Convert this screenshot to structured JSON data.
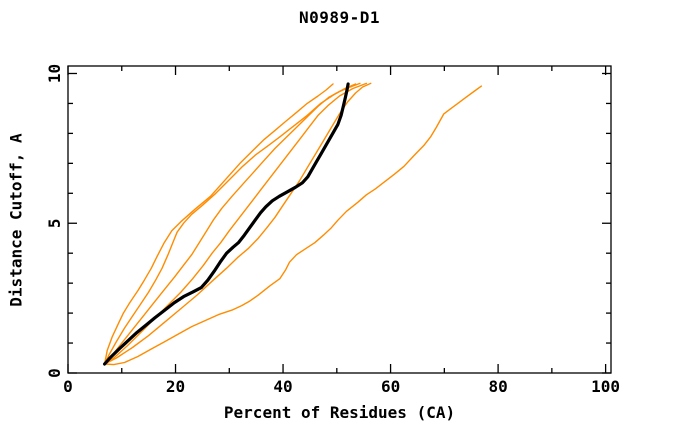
{
  "chart": {
    "title": "N0989-D1",
    "x_axis_label": "Percent of Residues (CA)",
    "y_axis_label": "Distance Cutoff, A"
  },
  "chart_data": {
    "type": "line",
    "title": "N0989-D1",
    "xlabel": "Percent of Residues (CA)",
    "ylabel": "Distance Cutoff, A",
    "xlim": [
      0,
      100
    ],
    "ylim": [
      0,
      10
    ],
    "x_major_ticks": [
      0,
      20,
      40,
      60,
      80,
      100
    ],
    "x_minor_ticks": [
      10,
      30,
      50,
      70,
      90
    ],
    "y_major_ticks": [
      0,
      5,
      10
    ],
    "y_minor_ticks": [
      1,
      2,
      3,
      4,
      6,
      7,
      8,
      9
    ],
    "grid": false,
    "legend": "none",
    "colors": {
      "model_lines": "#ff8c00",
      "highlight_line": "#000000",
      "axis": "#000000"
    },
    "series": [
      {
        "name": "orange-model-1",
        "color": "#ff8c00",
        "width": 1.4,
        "points": [
          [
            6.8,
            0.3
          ],
          [
            7.3,
            0.75
          ],
          [
            8.2,
            1.2
          ],
          [
            9.5,
            1.7
          ],
          [
            10.3,
            2.0
          ],
          [
            11.5,
            2.35
          ],
          [
            13,
            2.75
          ],
          [
            14.2,
            3.1
          ],
          [
            15.5,
            3.5
          ],
          [
            16.6,
            3.9
          ],
          [
            17.9,
            4.35
          ],
          [
            19.3,
            4.75
          ],
          [
            21,
            5.05
          ],
          [
            23.5,
            5.45
          ],
          [
            26.5,
            5.9
          ],
          [
            29.5,
            6.5
          ],
          [
            32,
            7.0
          ],
          [
            34.5,
            7.45
          ],
          [
            36.5,
            7.8
          ],
          [
            38.5,
            8.1
          ],
          [
            40.5,
            8.4
          ],
          [
            42.5,
            8.7
          ],
          [
            44.5,
            9.0
          ],
          [
            46.5,
            9.25
          ],
          [
            48,
            9.45
          ],
          [
            49.3,
            9.65
          ]
        ]
      },
      {
        "name": "orange-model-2",
        "color": "#ff8c00",
        "width": 1.4,
        "points": [
          [
            6.8,
            0.3
          ],
          [
            7.6,
            0.6
          ],
          [
            9,
            1.05
          ],
          [
            10.5,
            1.5
          ],
          [
            12,
            1.9
          ],
          [
            13.5,
            2.3
          ],
          [
            15,
            2.7
          ],
          [
            16.3,
            3.1
          ],
          [
            17.5,
            3.5
          ],
          [
            18.6,
            3.95
          ],
          [
            19.5,
            4.35
          ],
          [
            20.3,
            4.7
          ],
          [
            21.5,
            5.0
          ],
          [
            23,
            5.3
          ],
          [
            25,
            5.6
          ],
          [
            27.5,
            6.0
          ],
          [
            30,
            6.45
          ],
          [
            32.5,
            6.9
          ],
          [
            35,
            7.3
          ],
          [
            37.3,
            7.6
          ],
          [
            39.5,
            7.9
          ],
          [
            42,
            8.25
          ],
          [
            44.5,
            8.6
          ],
          [
            47,
            9.0
          ],
          [
            49.5,
            9.3
          ],
          [
            51.5,
            9.5
          ],
          [
            53.5,
            9.65
          ]
        ]
      },
      {
        "name": "orange-model-3",
        "color": "#ff8c00",
        "width": 1.4,
        "points": [
          [
            6.8,
            0.3
          ],
          [
            8,
            0.55
          ],
          [
            10,
            1.0
          ],
          [
            12,
            1.45
          ],
          [
            14,
            1.9
          ],
          [
            16,
            2.35
          ],
          [
            18,
            2.8
          ],
          [
            19.8,
            3.2
          ],
          [
            21.5,
            3.6
          ],
          [
            23,
            3.95
          ],
          [
            24.4,
            4.35
          ],
          [
            25.8,
            4.75
          ],
          [
            27,
            5.1
          ],
          [
            28.6,
            5.5
          ],
          [
            30.5,
            5.9
          ],
          [
            32.5,
            6.3
          ],
          [
            34.5,
            6.7
          ],
          [
            36.5,
            7.1
          ],
          [
            38.5,
            7.5
          ],
          [
            40.5,
            7.85
          ],
          [
            42.5,
            8.2
          ],
          [
            44.5,
            8.55
          ],
          [
            46.5,
            8.9
          ],
          [
            48.5,
            9.2
          ],
          [
            50.5,
            9.4
          ],
          [
            52.5,
            9.55
          ],
          [
            54.3,
            9.67
          ]
        ]
      },
      {
        "name": "orange-model-4",
        "color": "#ff8c00",
        "width": 1.4,
        "points": [
          [
            6.8,
            0.3
          ],
          [
            8.5,
            0.5
          ],
          [
            11,
            0.9
          ],
          [
            13.5,
            1.35
          ],
          [
            16,
            1.8
          ],
          [
            18.5,
            2.25
          ],
          [
            21,
            2.7
          ],
          [
            23.2,
            3.15
          ],
          [
            25.2,
            3.6
          ],
          [
            26.8,
            4.0
          ],
          [
            28.4,
            4.35
          ],
          [
            30,
            4.75
          ],
          [
            31.5,
            5.1
          ],
          [
            33,
            5.45
          ],
          [
            34.5,
            5.8
          ],
          [
            36,
            6.15
          ],
          [
            37.5,
            6.5
          ],
          [
            39,
            6.85
          ],
          [
            40.5,
            7.2
          ],
          [
            42,
            7.55
          ],
          [
            43.5,
            7.9
          ],
          [
            45,
            8.25
          ],
          [
            46.5,
            8.6
          ],
          [
            48.5,
            8.95
          ],
          [
            50.5,
            9.25
          ],
          [
            53,
            9.5
          ],
          [
            55.5,
            9.67
          ]
        ]
      },
      {
        "name": "orange-model-5",
        "color": "#ff8c00",
        "width": 1.4,
        "points": [
          [
            6.8,
            0.3
          ],
          [
            9,
            0.5
          ],
          [
            12,
            0.85
          ],
          [
            15,
            1.25
          ],
          [
            18,
            1.7
          ],
          [
            21,
            2.15
          ],
          [
            24,
            2.6
          ],
          [
            27,
            3.1
          ],
          [
            29.5,
            3.5
          ],
          [
            31.5,
            3.85
          ],
          [
            33.5,
            4.15
          ],
          [
            35.4,
            4.5
          ],
          [
            37,
            4.85
          ],
          [
            38.5,
            5.2
          ],
          [
            40,
            5.6
          ],
          [
            41.5,
            6.0
          ],
          [
            43,
            6.4
          ],
          [
            44.5,
            6.85
          ],
          [
            46,
            7.3
          ],
          [
            47.5,
            7.75
          ],
          [
            49,
            8.2
          ],
          [
            50.5,
            8.65
          ],
          [
            52,
            9.05
          ],
          [
            53.5,
            9.35
          ],
          [
            54.8,
            9.55
          ],
          [
            56.3,
            9.67
          ]
        ]
      },
      {
        "name": "orange-model-6-outlier",
        "color": "#ff8c00",
        "width": 1.4,
        "points": [
          [
            6.8,
            0.3
          ],
          [
            8.5,
            0.28
          ],
          [
            10.5,
            0.35
          ],
          [
            13,
            0.55
          ],
          [
            15.5,
            0.8
          ],
          [
            18,
            1.05
          ],
          [
            20.5,
            1.3
          ],
          [
            23,
            1.55
          ],
          [
            25.5,
            1.75
          ],
          [
            28,
            1.95
          ],
          [
            30.5,
            2.1
          ],
          [
            32.3,
            2.25
          ],
          [
            33.8,
            2.4
          ],
          [
            35.4,
            2.6
          ],
          [
            37.5,
            2.9
          ],
          [
            39.4,
            3.15
          ],
          [
            40.5,
            3.45
          ],
          [
            41.2,
            3.7
          ],
          [
            42.5,
            3.95
          ],
          [
            44.2,
            4.15
          ],
          [
            45.9,
            4.35
          ],
          [
            47.5,
            4.6
          ],
          [
            49,
            4.85
          ],
          [
            50.2,
            5.1
          ],
          [
            51.8,
            5.4
          ],
          [
            53.9,
            5.7
          ],
          [
            55.5,
            5.95
          ],
          [
            57.2,
            6.15
          ],
          [
            59,
            6.4
          ],
          [
            60.8,
            6.65
          ],
          [
            62.5,
            6.9
          ],
          [
            64.3,
            7.25
          ],
          [
            66.2,
            7.6
          ],
          [
            67.5,
            7.9
          ],
          [
            68.5,
            8.2
          ],
          [
            69.9,
            8.65
          ],
          [
            71,
            8.8
          ],
          [
            72.5,
            9.0
          ],
          [
            74,
            9.2
          ],
          [
            75.5,
            9.4
          ],
          [
            76.9,
            9.58
          ]
        ]
      },
      {
        "name": "black-highlight-model",
        "color": "#000000",
        "width": 3.2,
        "points": [
          [
            6.8,
            0.3
          ],
          [
            7.8,
            0.5
          ],
          [
            9.5,
            0.8
          ],
          [
            11,
            1.05
          ],
          [
            12.8,
            1.35
          ],
          [
            14.5,
            1.6
          ],
          [
            16.2,
            1.85
          ],
          [
            18,
            2.1
          ],
          [
            19.8,
            2.35
          ],
          [
            21.5,
            2.55
          ],
          [
            23.2,
            2.7
          ],
          [
            24.8,
            2.85
          ],
          [
            26,
            3.1
          ],
          [
            27.2,
            3.4
          ],
          [
            28.3,
            3.7
          ],
          [
            29.5,
            4.0
          ],
          [
            30.7,
            4.2
          ],
          [
            31.7,
            4.35
          ],
          [
            32.8,
            4.6
          ],
          [
            33.8,
            4.85
          ],
          [
            34.8,
            5.1
          ],
          [
            35.8,
            5.35
          ],
          [
            36.8,
            5.55
          ],
          [
            38,
            5.75
          ],
          [
            39.3,
            5.9
          ],
          [
            40.8,
            6.05
          ],
          [
            42.3,
            6.2
          ],
          [
            43.6,
            6.35
          ],
          [
            44.6,
            6.55
          ],
          [
            45.4,
            6.8
          ],
          [
            46.2,
            7.05
          ],
          [
            47,
            7.3
          ],
          [
            47.8,
            7.55
          ],
          [
            48.6,
            7.8
          ],
          [
            49.4,
            8.05
          ],
          [
            50.2,
            8.3
          ],
          [
            50.8,
            8.6
          ],
          [
            51.2,
            8.9
          ],
          [
            51.6,
            9.2
          ],
          [
            51.9,
            9.45
          ],
          [
            52.1,
            9.65
          ]
        ]
      }
    ]
  }
}
